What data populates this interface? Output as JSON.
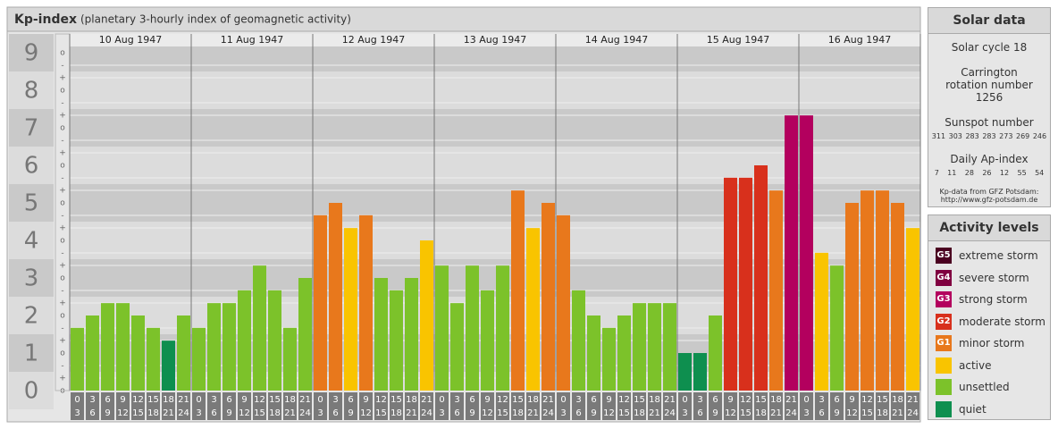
{
  "chart_data": {
    "type": "bar",
    "title": "Kp-index",
    "subtitle": "(planetary 3-hourly index of geomagnetic activity)",
    "days": [
      "10 Aug 1947",
      "11 Aug 1947",
      "12 Aug 1947",
      "13 Aug 1947",
      "14 Aug 1947",
      "15 Aug 1947",
      "16 Aug 1947"
    ],
    "hour_starts": [
      "0",
      "3",
      "6",
      "9",
      "12",
      "15",
      "18",
      "21"
    ],
    "hour_ends": [
      "3",
      "6",
      "9",
      "12",
      "15",
      "18",
      "21",
      "24"
    ],
    "values": [
      1.67,
      2,
      2.33,
      2.33,
      2,
      1.67,
      1.33,
      2,
      1.67,
      2.33,
      2.33,
      2.67,
      3.33,
      2.67,
      1.67,
      3,
      4.67,
      5,
      4.33,
      4.67,
      3,
      2.67,
      3,
      4,
      3.33,
      2.33,
      3.33,
      2.67,
      3.33,
      5.33,
      4.33,
      5,
      4.67,
      2.67,
      2,
      1.67,
      2,
      2.33,
      2.33,
      2.33,
      1,
      1,
      2,
      5.67,
      5.67,
      6,
      5.33,
      7.33,
      7.33,
      3.67,
      3.33,
      5,
      5.33,
      5.33,
      5,
      4.33
    ],
    "colors": [
      "#7cc22a",
      "#7cc22a",
      "#7cc22a",
      "#7cc22a",
      "#7cc22a",
      "#7cc22a",
      "#0e8f4f",
      "#7cc22a",
      "#7cc22a",
      "#7cc22a",
      "#7cc22a",
      "#7cc22a",
      "#7cc22a",
      "#7cc22a",
      "#7cc22a",
      "#7cc22a",
      "#e8781c",
      "#e8781c",
      "#f9c400",
      "#e8781c",
      "#7cc22a",
      "#7cc22a",
      "#7cc22a",
      "#f9c400",
      "#7cc22a",
      "#7cc22a",
      "#7cc22a",
      "#7cc22a",
      "#7cc22a",
      "#e8781c",
      "#f9c400",
      "#e8781c",
      "#e8781c",
      "#7cc22a",
      "#7cc22a",
      "#7cc22a",
      "#7cc22a",
      "#7cc22a",
      "#7cc22a",
      "#7cc22a",
      "#0e8f4f",
      "#0e8f4f",
      "#7cc22a",
      "#d8301c",
      "#d8301c",
      "#d8301c",
      "#e8781c",
      "#b3005e",
      "#b3005e",
      "#f9c400",
      "#7cc22a",
      "#e8781c",
      "#e8781c",
      "#e8781c",
      "#e8781c",
      "#f9c400"
    ],
    "ylim": [
      0,
      9.5
    ],
    "yticks": [
      0,
      1,
      2,
      3,
      4,
      5,
      6,
      7,
      8,
      9
    ],
    "minor_tick_labels": [
      "-",
      "o",
      "+"
    ]
  },
  "solar_data": {
    "title": "Solar data",
    "solar_cycle": "Solar cycle 18",
    "carrington": "Carrington rotation number 1256",
    "sunspot_title": "Sunspot number",
    "sunspot_numbers": [
      311,
      303,
      283,
      283,
      273,
      269,
      246
    ],
    "ap_title": "Daily Ap-index",
    "ap_values": [
      7,
      11,
      28,
      26,
      12,
      55,
      54
    ],
    "source": "Kp-data from GFZ Potsdam:",
    "source_url": "http://www.gfz-potsdam.de"
  },
  "activity_levels": {
    "title": "Activity levels",
    "levels": [
      {
        "code": "G5",
        "label": "extreme storm",
        "color": "#4a0020"
      },
      {
        "code": "G4",
        "label": "severe storm",
        "color": "#800040"
      },
      {
        "code": "G3",
        "label": "strong storm",
        "color": "#b3005e"
      },
      {
        "code": "G2",
        "label": "moderate storm",
        "color": "#d8301c"
      },
      {
        "code": "G1",
        "label": "minor storm",
        "color": "#e8781c"
      },
      {
        "label": "active",
        "color": "#f9c400"
      },
      {
        "label": "unsettled",
        "color": "#7cc22a"
      },
      {
        "label": "quiet",
        "color": "#0e8f4f"
      }
    ]
  }
}
